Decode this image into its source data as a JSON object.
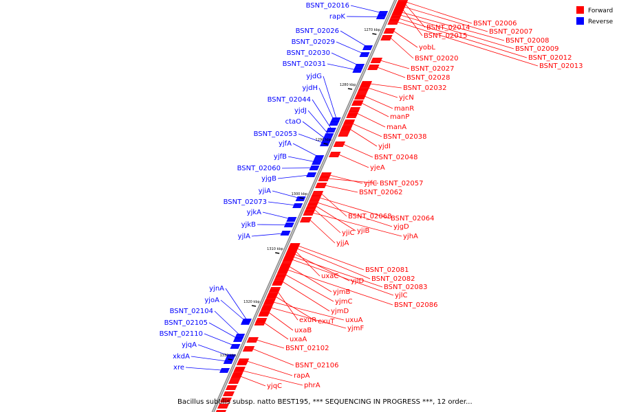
{
  "caption": "Bacillus subtilis subsp. natto BEST195, *** SEQUENCING IN PROGRESS ***, 12 order...",
  "legend": {
    "forward_label": "Forward",
    "reverse_label": "Reverse",
    "forward_color": "#ff0000",
    "reverse_color": "#0000ff"
  },
  "ticks": [
    "1270 kbp",
    "1280 kbp",
    "1290 kbp",
    "1300 kbp",
    "1310 kbp",
    "1320 kbp",
    "1330 kbp"
  ],
  "reverse_genes": [
    "BSNT_02016",
    "rapK",
    "BSNT_02026",
    "BSNT_02029",
    "BSNT_02030",
    "BSNT_02031",
    "yjdG",
    "yjdH",
    "BSNT_02044",
    "yjdJ",
    "ctaO",
    "BSNT_02053",
    "yjfA",
    "yjfB",
    "BSNT_02060",
    "yjgB",
    "yjiA",
    "BSNT_02073",
    "yjkA",
    "yjkB",
    "yjlA",
    "yjnA",
    "yjoA",
    "BSNT_02104",
    "BSNT_02105",
    "BSNT_02110",
    "yjqA",
    "xkdA",
    "xre"
  ],
  "forward_genes": [
    "BSNT_02006",
    "BSNT_02014",
    "BSNT_02007",
    "BSNT_02015",
    "BSNT_02008",
    "BSNT_02009",
    "BSNT_02012",
    "BSNT_02013",
    "yobL",
    "BSNT_02020",
    "BSNT_02027",
    "BSNT_02028",
    "BSNT_02032",
    "yjcN",
    "manR",
    "manP",
    "manA",
    "BSNT_02038",
    "yjdI",
    "BSNT_02048",
    "yjeA",
    "yjfC",
    "BSNT_02057",
    "BSNT_02062",
    "BSNT_02068",
    "BSNT_02064",
    "yjgD",
    "yjiB",
    "yjiC",
    "yjhA",
    "yjjA",
    "BSNT_02081",
    "BSNT_02082",
    "uxaC",
    "yjlD",
    "BSNT_02083",
    "yjlC",
    "yjmB",
    "BSNT_02086",
    "yjmC",
    "yjmD",
    "exuR",
    "exuT",
    "uxuA",
    "yjmF",
    "uxaB",
    "uxaA",
    "BSNT_02102",
    "BSNT_02106",
    "rapA",
    "phrA",
    "yjqC"
  ]
}
